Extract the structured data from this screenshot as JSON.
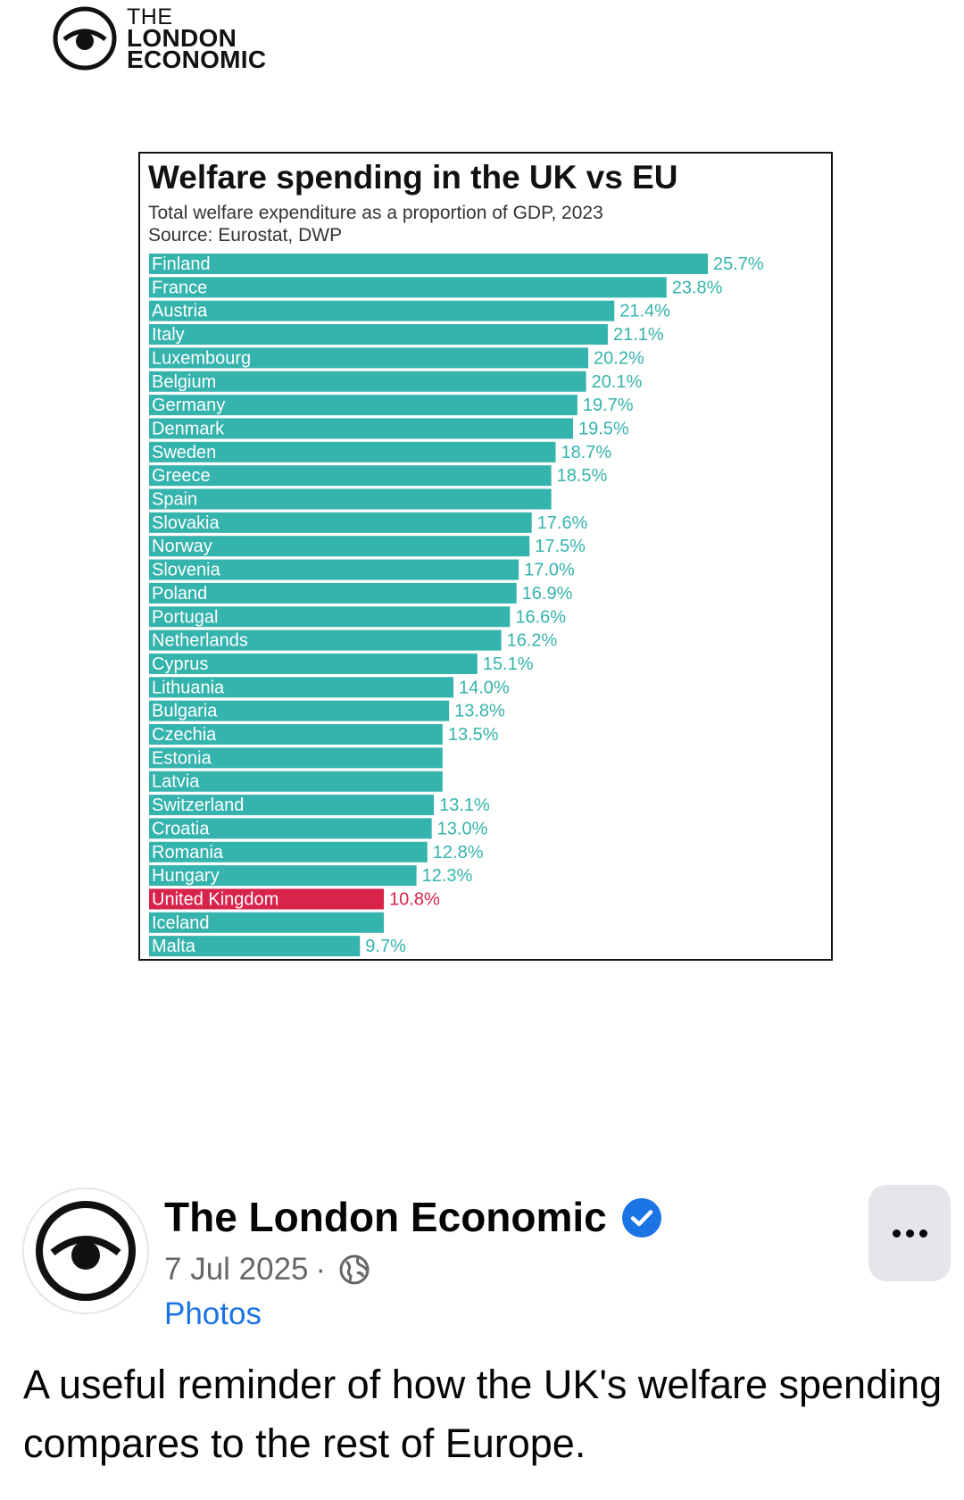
{
  "brand": {
    "line1": "THE",
    "line2": "LONDON",
    "line3": "ECONOMIC"
  },
  "chart_data": {
    "type": "bar",
    "orientation": "horizontal",
    "title": "Welfare spending in the UK vs EU",
    "subtitle": "Total welfare expenditure as a proportion of GDP, 2023",
    "source": "Source: Eurostat, DWP",
    "unit": "%",
    "categories": [
      "Finland",
      "France",
      "Austria",
      "Italy",
      "Luxembourg",
      "Belgium",
      "Germany",
      "Denmark",
      "Sweden",
      "Greece",
      "Spain",
      "Slovakia",
      "Norway",
      "Slovenia",
      "Poland",
      "Portugal",
      "Netherlands",
      "Cyprus",
      "Lithuania",
      "Bulgaria",
      "Czechia",
      "Estonia",
      "Latvia",
      "Switzerland",
      "Croatia",
      "Romania",
      "Hungary",
      "United Kingdom",
      "Iceland",
      "Malta"
    ],
    "values": [
      25.7,
      23.8,
      21.4,
      21.1,
      20.2,
      20.1,
      19.7,
      19.5,
      18.7,
      18.5,
      18.5,
      17.6,
      17.5,
      17.0,
      16.9,
      16.6,
      16.2,
      15.1,
      14.0,
      13.8,
      13.5,
      13.5,
      13.5,
      13.1,
      13.0,
      12.8,
      12.3,
      10.8,
      10.8,
      9.7
    ],
    "value_labels": [
      "25.7%",
      "23.8%",
      "21.4%",
      "21.1%",
      "20.2%",
      "20.1%",
      "19.7%",
      "19.5%",
      "18.7%",
      "18.5%",
      "",
      "17.6%",
      "17.5%",
      "17.0%",
      "16.9%",
      "16.6%",
      "16.2%",
      "15.1%",
      "14.0%",
      "13.8%",
      "13.5%",
      "",
      "",
      "13.1%",
      "13.0%",
      "12.8%",
      "12.3%",
      "10.8%",
      "",
      "9.7%"
    ],
    "highlight": "United Kingdom",
    "colors": {
      "bar": "#35b3ad",
      "highlight": "#d8234b",
      "label_bar": "#ffffff",
      "value": "#35b3ad",
      "value_highlight": "#d8234b"
    },
    "xlim": [
      0,
      25.7
    ]
  },
  "post": {
    "page_name": "The London Economic",
    "date": "7 Jul 2025",
    "separator": "·",
    "section": "Photos",
    "text": "A useful reminder of how the UK's welfare spending compares to the rest of Europe."
  },
  "icons": {
    "verified": "verified-badge-icon",
    "globe": "globe-icon",
    "more": "more-options-icon",
    "logo": "eye-logo-icon"
  },
  "ui_colors": {
    "verified": "#1b74e4",
    "link": "#1b74e4",
    "meta": "#65676b"
  }
}
